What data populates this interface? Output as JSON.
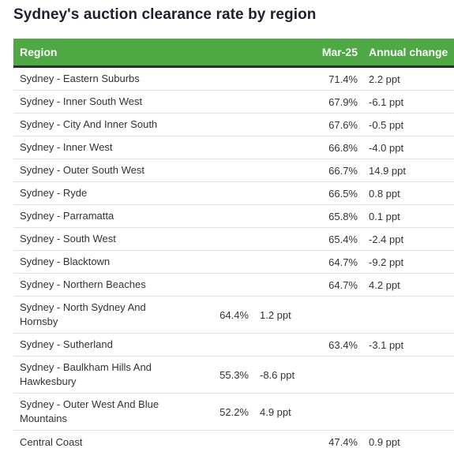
{
  "title": "Sydney's auction clearance rate by region",
  "table": {
    "headers": {
      "region": "Region",
      "mar25": "Mar-25",
      "change": "Annual change"
    },
    "header_color": "#4ea843",
    "rows": [
      {
        "region": "Sydney - Eastern Suburbs",
        "mar25": "71.4%",
        "change": "2.2 ppt"
      },
      {
        "region": "Sydney - Inner South West",
        "mar25": "67.9%",
        "change": "-6.1 ppt"
      },
      {
        "region": "Sydney - City And Inner South",
        "mar25": "67.6%",
        "change": "-0.5 ppt"
      },
      {
        "region": "Sydney - Inner West",
        "mar25": "66.8%",
        "change": "-4.0 ppt"
      },
      {
        "region": "Sydney - Outer South West",
        "mar25": "66.7%",
        "change": "14.9 ppt"
      },
      {
        "region": "Sydney - Ryde",
        "mar25": "66.5%",
        "change": "0.8 ppt"
      },
      {
        "region": "Sydney - Parramatta",
        "mar25": "65.8%",
        "change": "0.1 ppt"
      },
      {
        "region": "Sydney - South West",
        "mar25": "65.4%",
        "change": "-2.4 ppt"
      },
      {
        "region": "Sydney - Blacktown",
        "mar25": "64.7%",
        "change": "-9.2 ppt"
      },
      {
        "region": "Sydney - Northern Beaches",
        "mar25": "64.7%",
        "change": "4.2 ppt"
      },
      {
        "region": "Sydney - North Sydney And Hornsby",
        "mar25": "64.4%",
        "change": "1.2 ppt"
      },
      {
        "region": "Sydney - Sutherland",
        "mar25": "63.4%",
        "change": "-3.1 ppt"
      },
      {
        "region": "Sydney - Baulkham Hills And Hawkesbury",
        "mar25": "55.3%",
        "change": "-8.6 ppt"
      },
      {
        "region": "Sydney - Outer West And Blue Mountains",
        "mar25": "52.2%",
        "change": "4.9 ppt"
      },
      {
        "region": "Central Coast",
        "mar25": "47.4%",
        "change": "0.9 ppt"
      }
    ]
  }
}
